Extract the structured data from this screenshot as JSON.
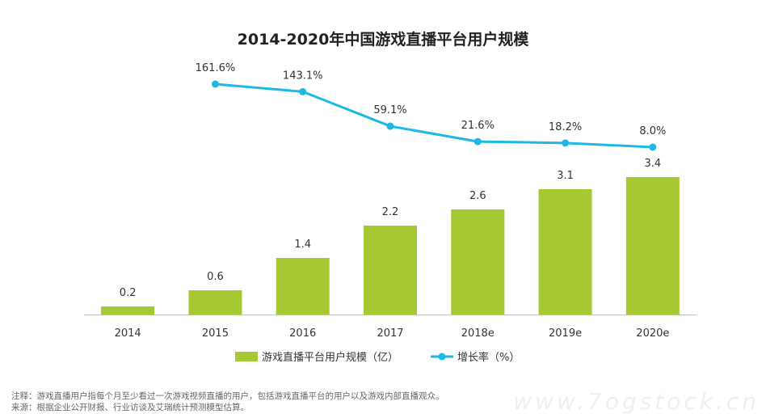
{
  "chart_data": {
    "type": "bar+line",
    "title": "2014-2020年中国游戏直播平台用户规模",
    "categories": [
      "2014",
      "2015",
      "2016",
      "2017",
      "2018e",
      "2019e",
      "2020e"
    ],
    "series": [
      {
        "name": "游戏直播平台用户规模（亿）",
        "type": "bar",
        "values": [
          0.2,
          0.6,
          1.4,
          2.2,
          2.6,
          3.1,
          3.4
        ],
        "labels": [
          "0.2",
          "0.6",
          "1.4",
          "2.2",
          "2.6",
          "3.1",
          "3.4"
        ],
        "color": "#a6c832"
      },
      {
        "name": "增长率（%）",
        "type": "line",
        "values": [
          null,
          161.6,
          143.1,
          59.1,
          21.6,
          18.2,
          8.0
        ],
        "labels": [
          "",
          "161.6%",
          "143.1%",
          "59.1%",
          "21.6%",
          "18.2%",
          "8.0%"
        ],
        "color": "#1fb8e6"
      }
    ],
    "bar_ylim": [
      0,
      4.5
    ],
    "line_ylim": [
      0,
      400
    ],
    "grid": false,
    "legend_position": "bottom"
  },
  "notes": {
    "line1": "注释：游戏直播用户指每个月至少看过一次游戏视频直播的用户，包括游戏直播平台的用户以及游戏内部直播观众。",
    "line2": "来源：根据企业公开财报、行业访谈及艾瑞统计预测模型估算。"
  },
  "watermark": "www.7ogstock.cn",
  "colors": {
    "bar": "#a6c832",
    "line": "#1fb8e6",
    "axis": "#bfbfbf",
    "text": "#333333"
  }
}
